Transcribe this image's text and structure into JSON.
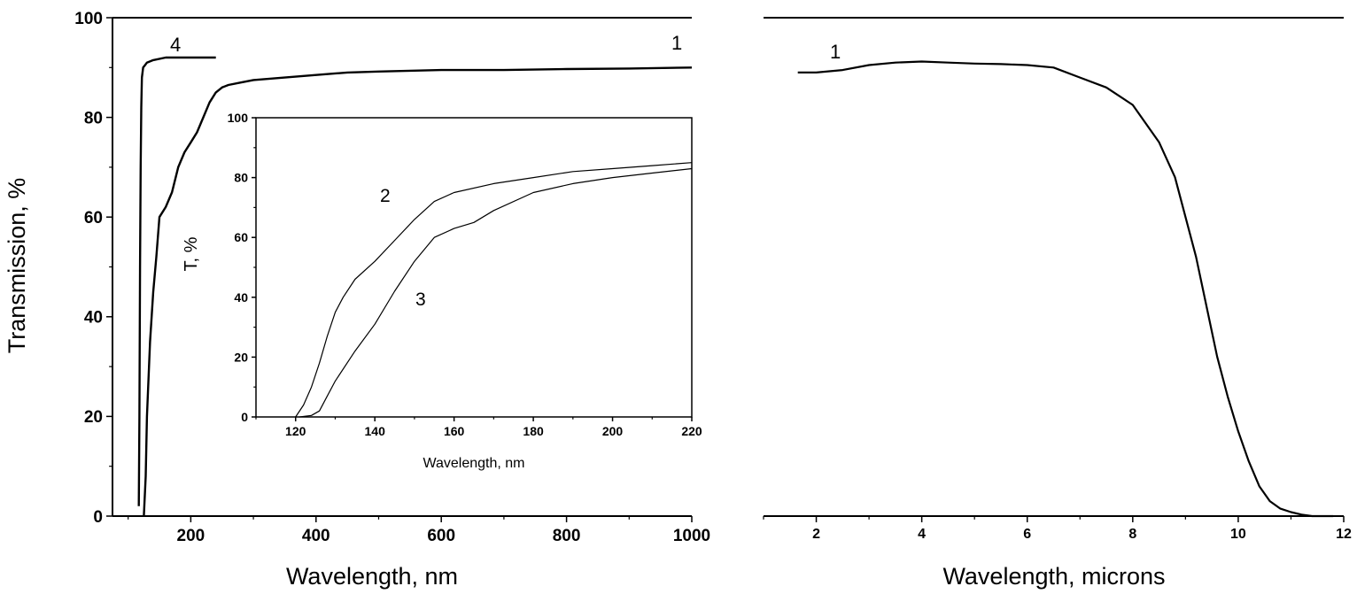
{
  "chart_data": [
    {
      "type": "line",
      "id": "left-main",
      "xlabel": "Wavelength, nm",
      "ylabel": "Transmission, %",
      "xlim": [
        75,
        1000
      ],
      "ylim": [
        0,
        100
      ],
      "xticks": [
        200,
        400,
        600,
        800,
        1000
      ],
      "yticks": [
        0,
        20,
        40,
        60,
        80,
        100
      ],
      "grid": false,
      "series": [
        {
          "label": "1",
          "x": [
            125,
            128,
            130,
            135,
            140,
            145,
            150,
            160,
            170,
            180,
            190,
            200,
            210,
            220,
            230,
            240,
            250,
            260,
            280,
            300,
            350,
            400,
            450,
            500,
            600,
            700,
            800,
            900,
            1000
          ],
          "y": [
            0,
            8,
            20,
            35,
            45,
            52,
            60,
            62,
            65,
            70,
            73,
            75,
            77,
            80,
            83,
            85,
            86,
            86.5,
            87,
            87.5,
            88,
            88.5,
            89,
            89.2,
            89.5,
            89.5,
            89.7,
            89.8,
            90
          ]
        },
        {
          "label": "4",
          "x": [
            117,
            118,
            119,
            120,
            121,
            122,
            124,
            127,
            130,
            140,
            160,
            200,
            240
          ],
          "y": [
            2,
            20,
            50,
            70,
            82,
            88,
            90,
            90.5,
            91,
            91.5,
            92,
            92,
            92
          ]
        }
      ]
    },
    {
      "type": "line",
      "id": "inset",
      "xlabel": "Wavelength, nm",
      "ylabel": "T, %",
      "xlim": [
        110,
        220
      ],
      "ylim": [
        0,
        100
      ],
      "xticks": [
        120,
        140,
        160,
        180,
        200,
        220
      ],
      "yticks": [
        0,
        20,
        40,
        60,
        80,
        100
      ],
      "grid": false,
      "series": [
        {
          "label": "2",
          "x": [
            120,
            122,
            124,
            126,
            128,
            130,
            132,
            135,
            140,
            145,
            150,
            155,
            160,
            170,
            180,
            190,
            200,
            210,
            220
          ],
          "y": [
            0,
            4,
            10,
            18,
            27,
            35,
            40,
            46,
            52,
            59,
            66,
            72,
            75,
            78,
            80,
            82,
            83,
            84,
            85
          ]
        },
        {
          "label": "3",
          "x": [
            121,
            124,
            126,
            128,
            130,
            135,
            140,
            145,
            150,
            155,
            160,
            165,
            170,
            180,
            190,
            200,
            210,
            220
          ],
          "y": [
            0,
            0.5,
            2,
            7,
            12,
            22,
            31,
            42,
            52,
            60,
            63,
            65,
            69,
            75,
            78,
            80,
            81.5,
            83
          ]
        }
      ]
    },
    {
      "type": "line",
      "id": "right-main",
      "xlabel": "Wavelength, microns",
      "xlim": [
        1,
        12
      ],
      "ylim": [
        0,
        100
      ],
      "xticks": [
        2,
        4,
        6,
        8,
        10,
        12
      ],
      "grid": false,
      "series": [
        {
          "label": "1",
          "x": [
            1.65,
            2,
            2.5,
            3,
            3.5,
            4,
            4.5,
            5,
            5.5,
            6,
            6.5,
            7,
            7.5,
            8,
            8.5,
            8.8,
            9,
            9.2,
            9.4,
            9.6,
            9.8,
            10,
            10.2,
            10.4,
            10.6,
            10.8,
            11,
            11.2,
            11.4,
            11.6,
            11.8
          ],
          "y": [
            89,
            89,
            89.5,
            90.5,
            91,
            91.2,
            91,
            90.8,
            90.7,
            90.5,
            90,
            88,
            86,
            82.5,
            75,
            68,
            60,
            52,
            42,
            32,
            24,
            17,
            11,
            6,
            3,
            1.5,
            0.8,
            0.3,
            0,
            0,
            0
          ]
        }
      ]
    }
  ]
}
